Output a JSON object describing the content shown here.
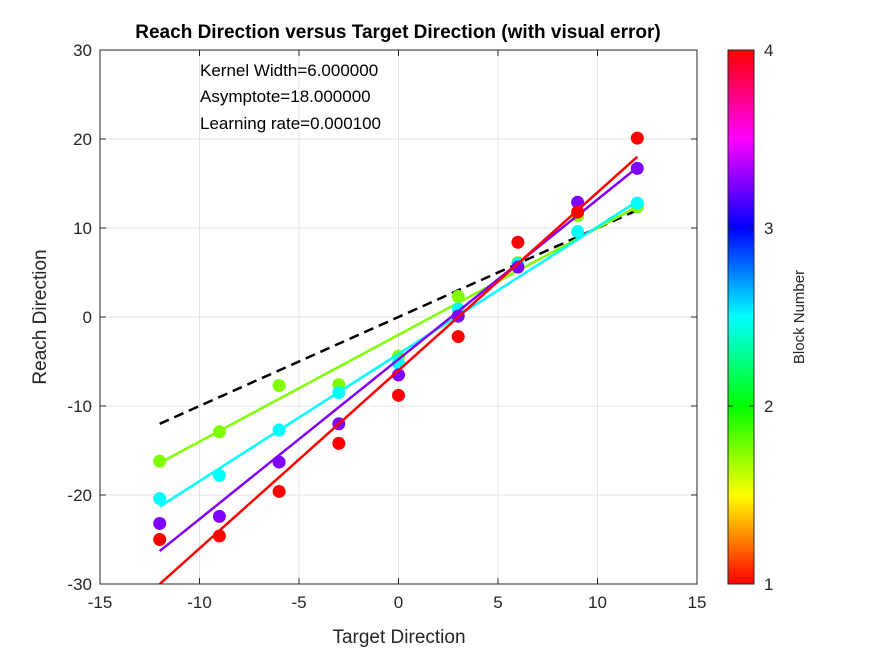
{
  "chart_data": {
    "type": "scatter",
    "title": "Reach Direction versus Target Direction (with visual error)",
    "xlabel": "Target Direction",
    "ylabel": "Reach Direction",
    "xlim": [
      -15,
      15
    ],
    "ylim": [
      -30,
      30
    ],
    "xticks": [
      "-15",
      "-10",
      "-5",
      "0",
      "5",
      "10",
      "15"
    ],
    "yticks": [
      "-30",
      "-20",
      "-10",
      "0",
      "10",
      "20",
      "30"
    ],
    "grid": true,
    "annotations": [
      "Kernel Width=6.000000",
      "Asymptote=18.000000",
      "Learning rate=0.000100"
    ],
    "reference_line": {
      "style": "dashed",
      "color": "#000000",
      "x": [
        -12,
        12
      ],
      "y": [
        -12,
        12
      ]
    },
    "x": [
      -12,
      -9,
      -6,
      -3,
      0,
      3,
      6,
      9,
      12
    ],
    "series": [
      {
        "color": "#80ff00",
        "values": [
          -16.2,
          -12.9,
          -7.7,
          -7.6,
          -4.4,
          2.3,
          6.1,
          11.4,
          12.4
        ],
        "fit": [
          -16.4,
          12.4
        ]
      },
      {
        "color": "#00ffff",
        "values": [
          -20.4,
          -17.8,
          -12.7,
          -8.5,
          -5.2,
          0.9,
          6.0,
          9.6,
          12.8
        ],
        "fit": [
          -21.3,
          13.0
        ]
      },
      {
        "color": "#8000ff",
        "values": [
          -23.2,
          -22.4,
          -16.3,
          -12.0,
          -6.5,
          0.1,
          5.6,
          12.9,
          16.7
        ],
        "fit": [
          -26.3,
          16.8
        ]
      },
      {
        "color": "#ff0000",
        "values": [
          -25.0,
          -24.6,
          -19.6,
          -14.2,
          -8.8,
          -2.2,
          8.4,
          11.8,
          20.1
        ],
        "fit": [
          -30.0,
          18.0
        ]
      }
    ],
    "colorbar": {
      "label": "Block Number",
      "ticks": [
        "1",
        "2",
        "3",
        "4"
      ],
      "range": [
        1,
        4
      ],
      "colors": [
        "#ff0000",
        "#ff8000",
        "#ffff00",
        "#80ff00",
        "#00ff00",
        "#00ff80",
        "#00ffff",
        "#0080ff",
        "#0000ff",
        "#8000ff",
        "#ff00ff",
        "#ff0080",
        "#ff0000"
      ]
    }
  }
}
